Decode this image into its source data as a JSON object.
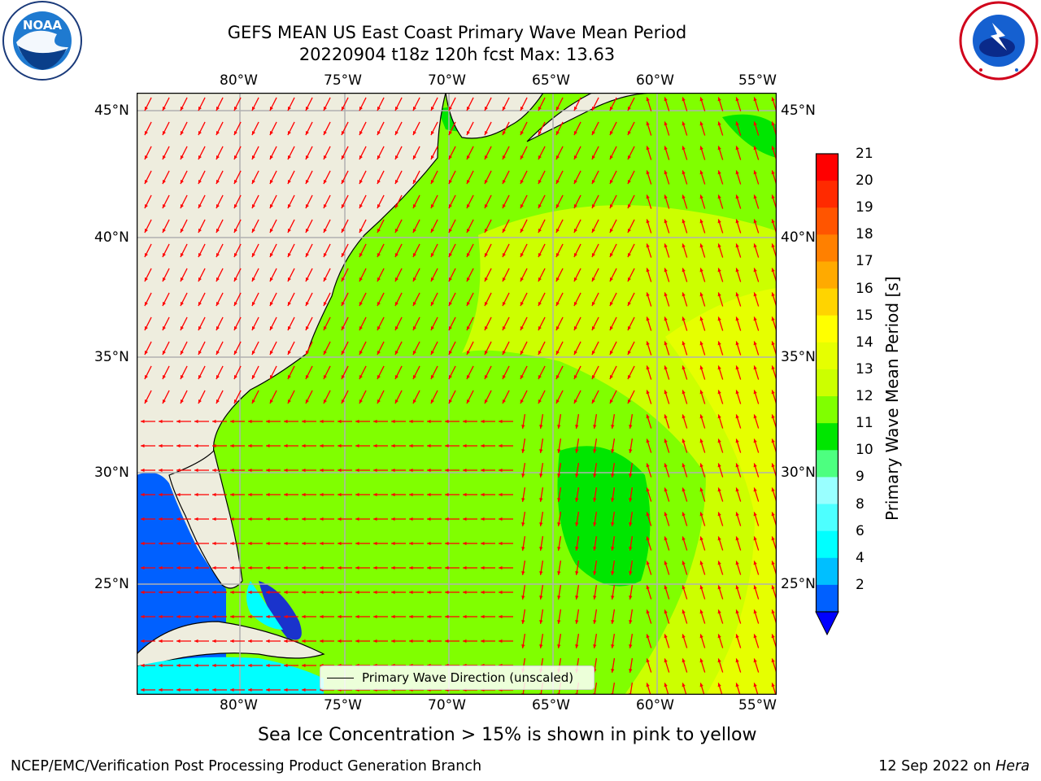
{
  "title": {
    "line1": "GEFS MEAN US East Coast Primary Wave Mean Period",
    "line2": "20220904 t18z 120h fcst   Max: 13.63"
  },
  "logos": {
    "left": "NOAA",
    "right": "NATIONAL WEATHER SERVICE"
  },
  "axes": {
    "lon_labels": [
      "80°W",
      "75°W",
      "70°W",
      "65°W",
      "60°W",
      "55°W"
    ],
    "lat_labels": [
      "45°N",
      "40°N",
      "35°N",
      "30°N",
      "25°N"
    ]
  },
  "colorbar": {
    "label": "Primary Wave Mean Period [s]",
    "ticks": [
      "21",
      "20",
      "19",
      "18",
      "17",
      "16",
      "15",
      "14",
      "13",
      "12",
      "11",
      "10",
      "9",
      "8",
      "6",
      "4",
      "2"
    ],
    "colors": [
      "#ff0000",
      "#ff2a00",
      "#ff5500",
      "#ff8000",
      "#ffaa00",
      "#ffd400",
      "#ffff00",
      "#e6ff00",
      "#ccff00",
      "#80ff00",
      "#00e600",
      "#4dff80",
      "#99ffff",
      "#4dffff",
      "#00ffff",
      "#00bfff",
      "#0060ff"
    ]
  },
  "legend": {
    "label": "Primary Wave Direction (unscaled)"
  },
  "subtitle": "Sea Ice Concentration > 15% is shown in pink to yellow",
  "footer": {
    "left": "NCEP/EMC/Verification Post Processing Product Generation Branch",
    "right_date": "12 Sep 2022 on ",
    "right_host": "Hera"
  },
  "map": {
    "land_color": "#eeedde",
    "grid_color": "#b0b0b0",
    "arrow_color": "#ff0000"
  }
}
